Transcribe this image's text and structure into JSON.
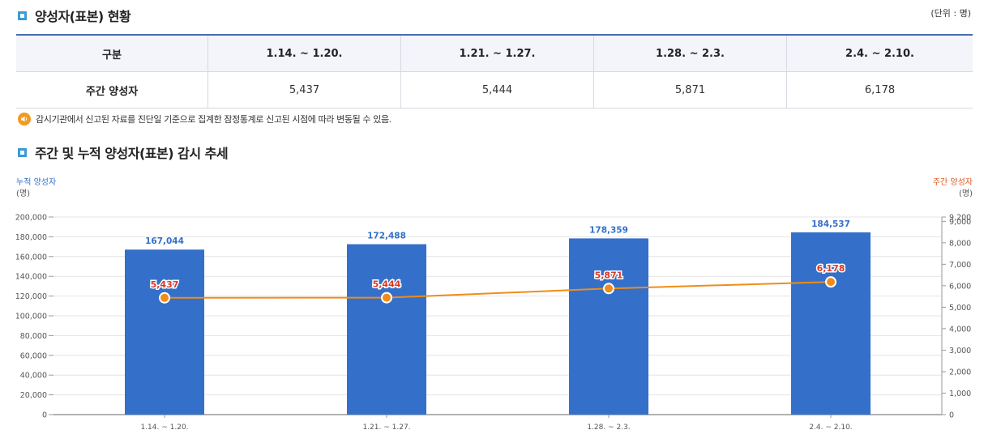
{
  "section1": {
    "title": "양성자(표본) 현황",
    "unit": "(단위 : 명)"
  },
  "table": {
    "headers": [
      "구분",
      "1.14. ~ 1.20.",
      "1.21. ~ 1.27.",
      "1.28. ~ 2.3.",
      "2.4. ~ 2.10."
    ],
    "row_label": "주간 양성자",
    "values": [
      "5,437",
      "5,444",
      "5,871",
      "6,178"
    ]
  },
  "note": {
    "icon": "speaker-icon",
    "text": "감시기관에서 신고된 자료를 진단일 기준으로 집계한 잠정통계로 신고된 시점에 따라 변동될 수 있음."
  },
  "section2": {
    "title": "주간 및 누적 양성자(표본) 감시 추세"
  },
  "colors": {
    "bar": "#3470c9",
    "line": "#f08c1a",
    "left_axis_title": "#3470c9",
    "right_axis_title": "#e05a1e",
    "bar_label": "#3470c9",
    "line_label": "#d9392b"
  },
  "chart_data": {
    "type": "bar",
    "categories": [
      "1.14. ~ 1.20.",
      "1.21. ~ 1.27.",
      "1.28. ~ 2.3.",
      "2.4. ~ 2.10."
    ],
    "series": [
      {
        "name": "누적 양성자",
        "kind": "bar",
        "axis": "left",
        "values": [
          167044,
          172488,
          178359,
          184537
        ],
        "labels": [
          "167,044",
          "172,488",
          "178,359",
          "184,537"
        ]
      },
      {
        "name": "주간 양성자",
        "kind": "line",
        "axis": "right",
        "values": [
          5437,
          5444,
          5871,
          6178
        ],
        "labels": [
          "5,437",
          "5,444",
          "5,871",
          "6,178"
        ]
      }
    ],
    "left_axis": {
      "title": "누적 양성자",
      "unit": "(명)",
      "ylim": [
        0,
        200000
      ],
      "ticks": [
        "0",
        "20,000",
        "40,000",
        "60,000",
        "80,000",
        "100,000",
        "120,000",
        "140,000",
        "160,000",
        "180,000",
        "200,000"
      ]
    },
    "right_axis": {
      "title": "주간 양성자",
      "unit": "(명)",
      "ylim": [
        0,
        9200
      ],
      "ticks": [
        "0",
        "1,000",
        "2,000",
        "3,000",
        "4,000",
        "5,000",
        "6,000",
        "7,000",
        "8,000",
        "9,000",
        "9,200"
      ]
    },
    "grid": true
  }
}
